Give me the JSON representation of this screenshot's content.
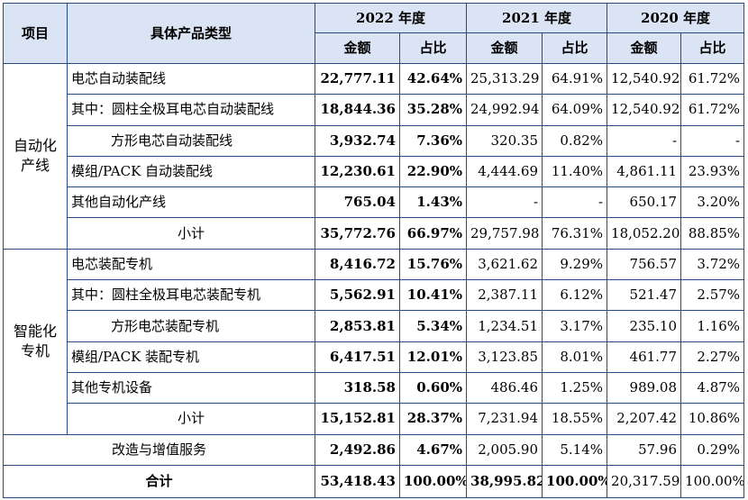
{
  "headers": {
    "item": "项目",
    "type": "具体产品类型",
    "years": [
      "2022 年度",
      "2021 年度",
      "2020 年度"
    ],
    "amount": "金额",
    "ratio": "占比"
  },
  "groups": [
    {
      "name": "自动化\n产线",
      "rows": [
        {
          "label": "电芯自动装配线",
          "indent": false,
          "v": [
            "22,777.11",
            "42.64%",
            "25,313.29",
            "64.91%",
            "12,540.92",
            "61.72%"
          ]
        },
        {
          "label": "其中：圆柱全极耳电芯自动装配线",
          "indent": false,
          "v": [
            "18,844.36",
            "35.28%",
            "24,992.94",
            "64.09%",
            "12,540.92",
            "61.72%"
          ]
        },
        {
          "label": "方形电芯自动装配线",
          "indent": true,
          "v": [
            "3,932.74",
            "7.36%",
            "320.35",
            "0.82%",
            "-",
            "-"
          ]
        },
        {
          "label": "模组/PACK 自动装配线",
          "indent": false,
          "v": [
            "12,230.61",
            "22.90%",
            "4,444.69",
            "11.40%",
            "4,861.11",
            "23.93%"
          ]
        },
        {
          "label": "其他自动化产线",
          "indent": false,
          "v": [
            "765.04",
            "1.43%",
            "-",
            "-",
            "650.17",
            "3.20%"
          ]
        },
        {
          "label": "小计",
          "subtotal": true,
          "v": [
            "35,772.76",
            "66.97%",
            "29,757.98",
            "76.31%",
            "18,052.20",
            "88.85%"
          ]
        }
      ]
    },
    {
      "name": "智能化\n专机",
      "rows": [
        {
          "label": "电芯装配专机",
          "indent": false,
          "v": [
            "8,416.72",
            "15.76%",
            "3,621.62",
            "9.29%",
            "756.57",
            "3.72%"
          ]
        },
        {
          "label": "其中：圆柱全极耳电芯装配专机",
          "indent": false,
          "v": [
            "5,562.91",
            "10.41%",
            "2,387.11",
            "6.12%",
            "521.47",
            "2.57%"
          ]
        },
        {
          "label": "方形电芯装配专机",
          "indent": true,
          "v": [
            "2,853.81",
            "5.34%",
            "1,234.51",
            "3.17%",
            "235.10",
            "1.16%"
          ]
        },
        {
          "label": "模组/PACK 装配专机",
          "indent": false,
          "v": [
            "6,417.51",
            "12.01%",
            "3,123.85",
            "8.01%",
            "461.77",
            "2.27%"
          ]
        },
        {
          "label": "其他专机设备",
          "indent": false,
          "v": [
            "318.58",
            "0.60%",
            "486.46",
            "1.25%",
            "989.08",
            "4.87%"
          ]
        },
        {
          "label": "小计",
          "subtotal": true,
          "v": [
            "15,152.81",
            "28.37%",
            "7,231.94",
            "18.55%",
            "2,207.42",
            "10.86%"
          ]
        }
      ]
    }
  ],
  "service_row": {
    "label": "改造与增值服务",
    "v": [
      "2,492.86",
      "4.67%",
      "2,005.90",
      "5.14%",
      "57.96",
      "0.29%"
    ]
  },
  "total_row": {
    "label": "合计",
    "v": [
      "53,418.43",
      "100.00%",
      "38,995.82",
      "100.00%",
      "20,317.59",
      "100.00%"
    ]
  }
}
